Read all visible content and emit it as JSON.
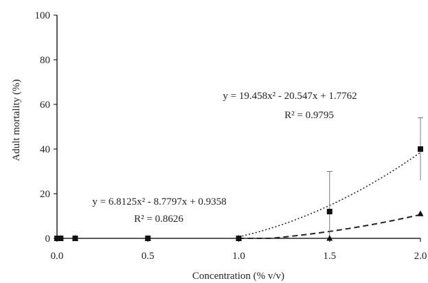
{
  "chart_data": {
    "type": "scatter",
    "xlabel": "Concentration (% v/v)",
    "ylabel": "Adult mortality (%)",
    "xlim": [
      0,
      2
    ],
    "ylim": [
      0,
      100
    ],
    "x_ticks": [
      "0.0",
      "0.5",
      "1.0",
      "1.5",
      "2.0"
    ],
    "y_ticks": [
      "0",
      "20",
      "40",
      "60",
      "80",
      "100"
    ],
    "grid": false,
    "series": [
      {
        "marker": "square",
        "points": [
          {
            "x": 0.0,
            "y": 0,
            "err": 0
          },
          {
            "x": 0.02,
            "y": 0,
            "err": 0
          },
          {
            "x": 0.1,
            "y": 0,
            "err": 0
          },
          {
            "x": 0.5,
            "y": 0,
            "err": 0
          },
          {
            "x": 1.0,
            "y": 0,
            "err": 0
          },
          {
            "x": 1.5,
            "y": 12,
            "err": 18
          },
          {
            "x": 2.0,
            "y": 40,
            "err": 14
          }
        ],
        "trendline": {
          "style": "dotted",
          "a": 19.458,
          "b": -20.547,
          "c": 1.7762,
          "x_from": 1.0,
          "x_to": 2.0
        },
        "equation": "y = 19.458x² - 20.547x + 1.7762",
        "r2": "R² = 0.9795"
      },
      {
        "marker": "triangle",
        "points": [
          {
            "x": 0.0,
            "y": 0
          },
          {
            "x": 0.02,
            "y": 0
          },
          {
            "x": 0.1,
            "y": 0
          },
          {
            "x": 0.5,
            "y": 0
          },
          {
            "x": 1.0,
            "y": 0
          },
          {
            "x": 1.5,
            "y": 0
          },
          {
            "x": 2.0,
            "y": 11
          }
        ],
        "trendline": {
          "style": "dashed",
          "a": 6.8125,
          "b": -8.7797,
          "c": 0.9358,
          "x_from": 1.0,
          "x_to": 2.0
        },
        "equation": "y = 6.8125x² - 8.7797x + 0.9358",
        "r2": "R² = 0.8626"
      }
    ]
  }
}
